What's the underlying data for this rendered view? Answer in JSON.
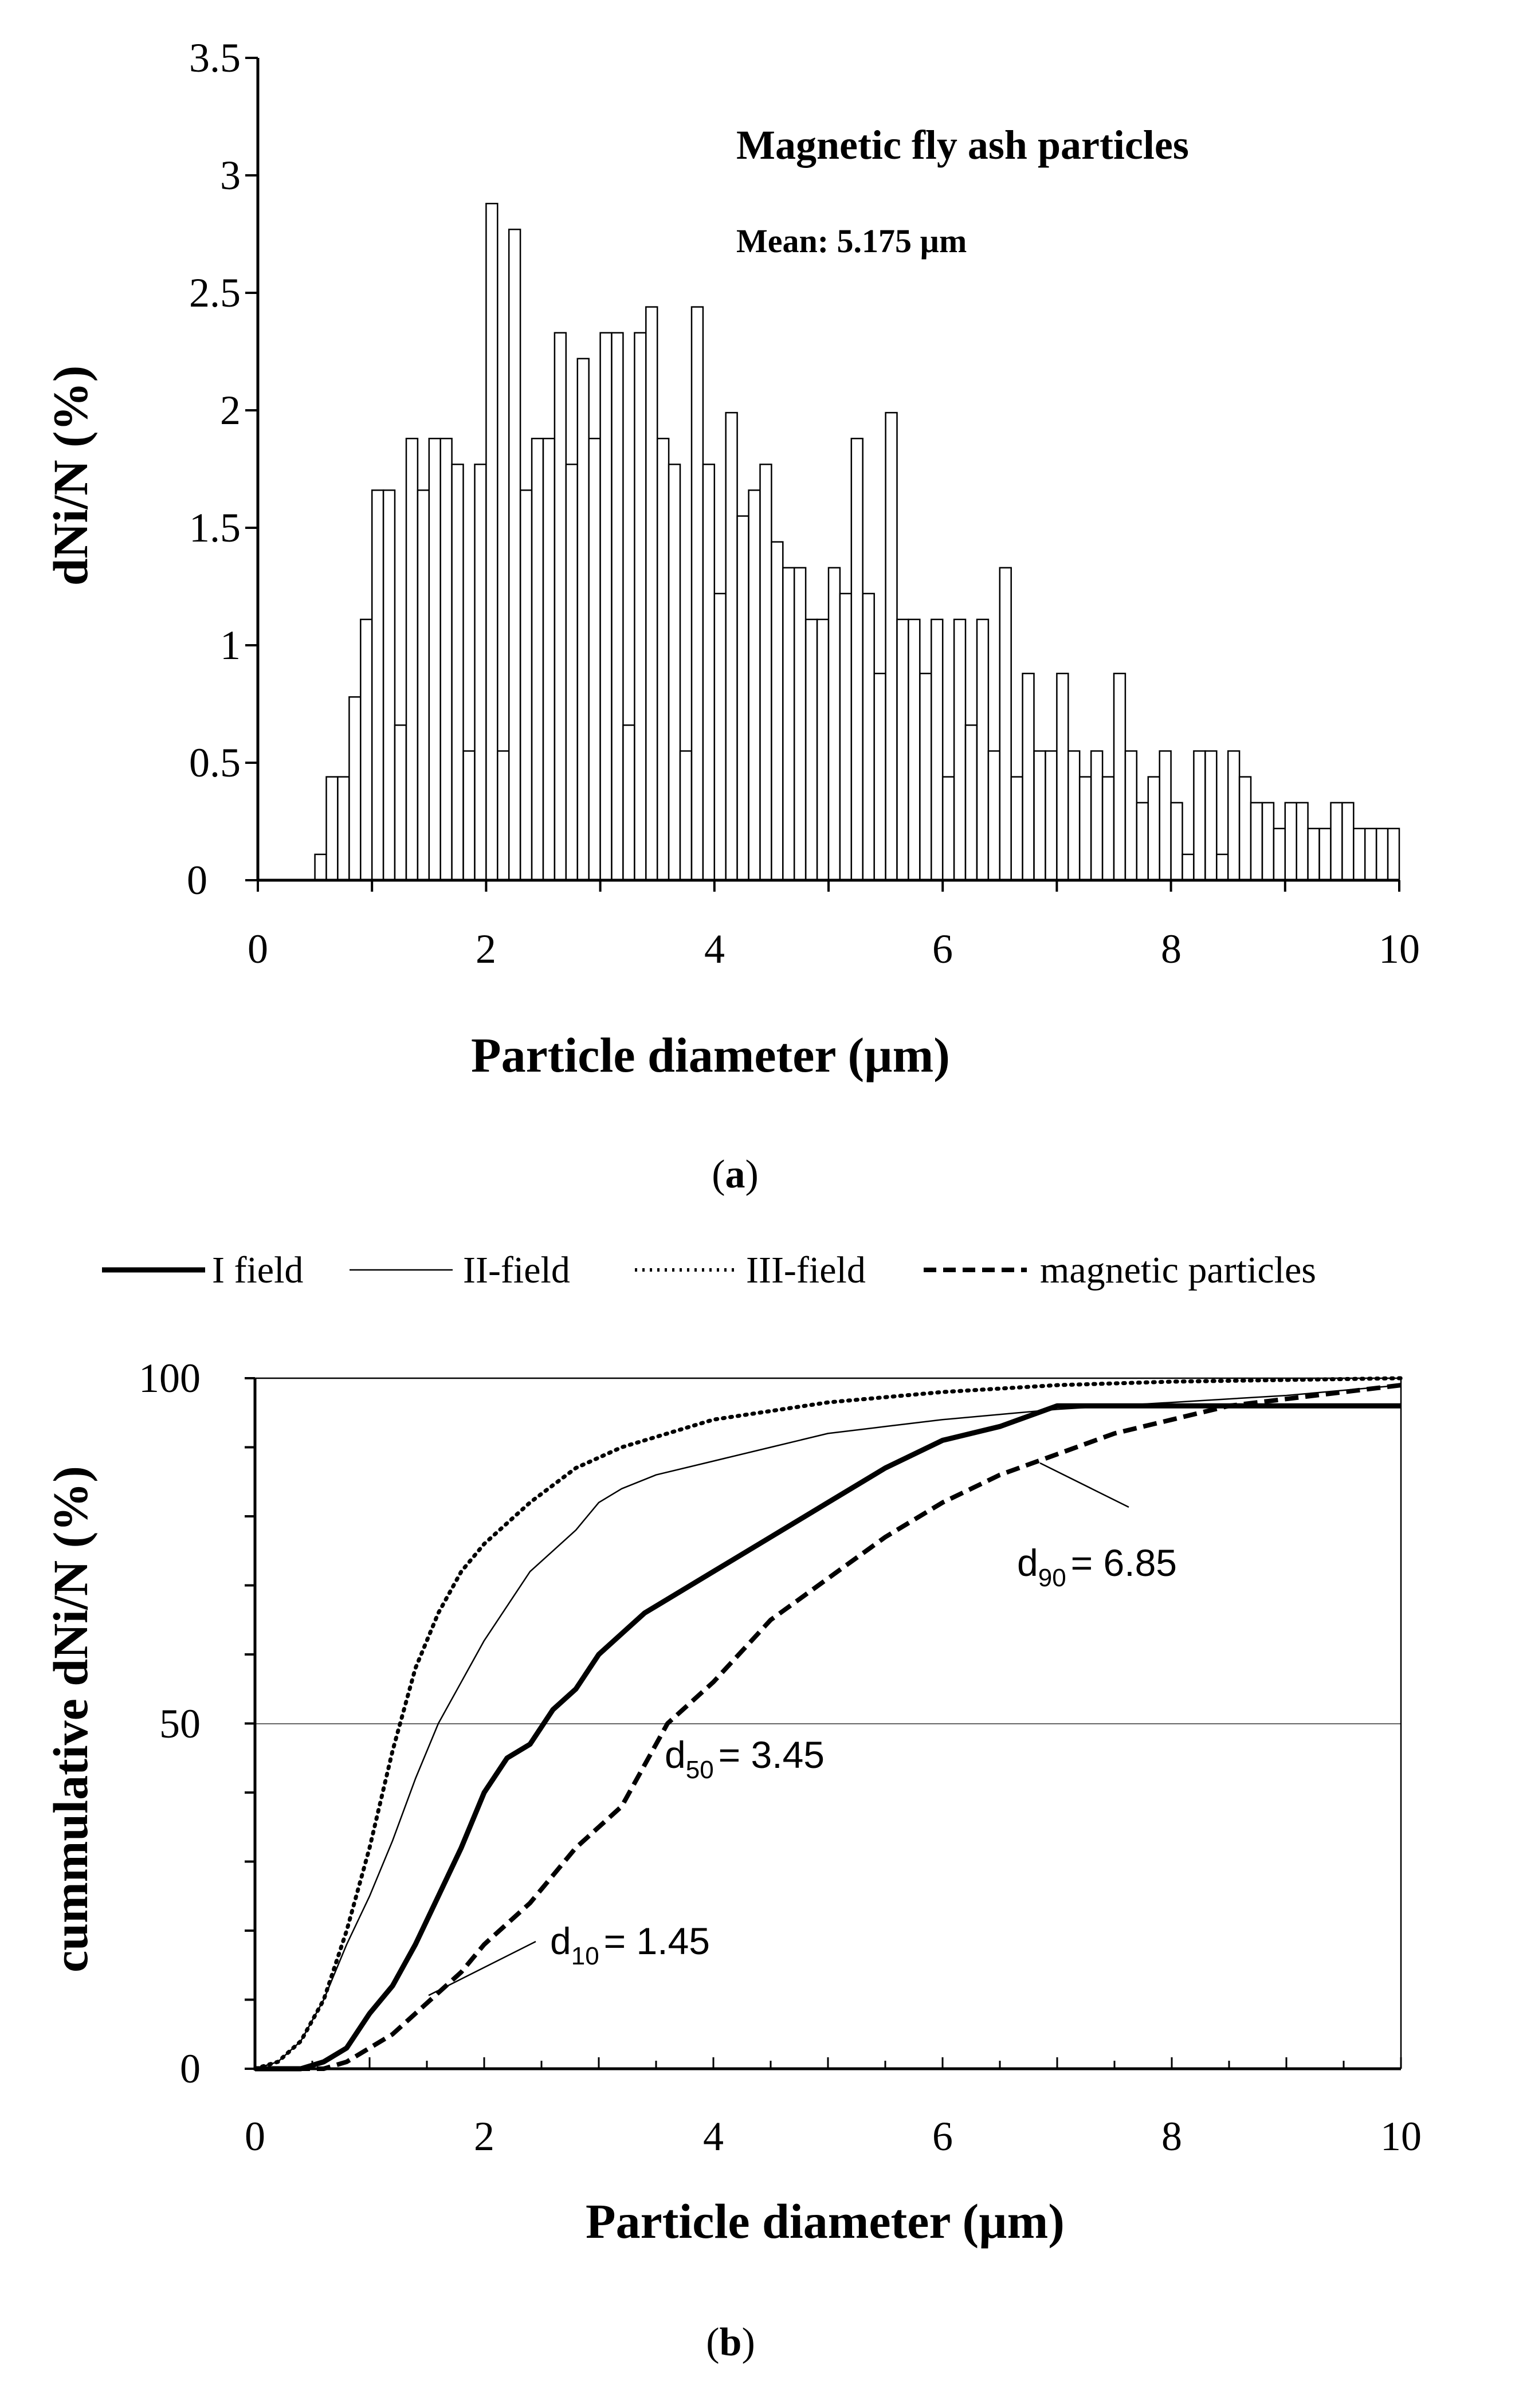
{
  "chart_data": [
    {
      "type": "bar",
      "panel_label": "a",
      "title": "Magnetic fly ash particles",
      "subtitle": "Mean: 5.175 µm",
      "xlabel": "Particle diameter (µm)",
      "ylabel": "dNi/N (%)",
      "xlim": [
        0,
        10
      ],
      "ylim": [
        0,
        3.5
      ],
      "x_ticks": [
        "0",
        "2",
        "4",
        "6",
        "8",
        "10"
      ],
      "y_ticks": [
        "0",
        "0.5",
        "1",
        "1.5",
        "2",
        "2.5",
        "3",
        "3.5"
      ],
      "bin_width": 0.1,
      "bin_start": 0.5,
      "values": [
        0.11,
        0.44,
        0.44,
        0.78,
        1.11,
        1.66,
        1.66,
        0.66,
        1.88,
        1.66,
        1.88,
        1.88,
        1.77,
        0.55,
        1.77,
        2.88,
        0.55,
        2.77,
        1.66,
        1.88,
        1.88,
        2.33,
        1.77,
        2.22,
        1.88,
        2.33,
        2.33,
        0.66,
        2.33,
        2.44,
        1.88,
        1.77,
        0.55,
        2.44,
        1.77,
        1.22,
        1.99,
        1.55,
        1.66,
        1.77,
        1.44,
        1.33,
        1.33,
        1.11,
        1.11,
        1.33,
        1.22,
        1.88,
        1.22,
        0.88,
        1.99,
        1.11,
        1.11,
        0.88,
        1.11,
        0.44,
        1.11,
        0.66,
        1.11,
        0.55,
        1.33,
        0.44,
        0.88,
        0.55,
        0.55,
        0.88,
        0.55,
        0.44,
        0.55,
        0.44,
        0.88,
        0.55,
        0.33,
        0.44,
        0.55,
        0.33,
        0.11,
        0.55,
        0.55,
        0.11,
        0.55,
        0.44,
        0.33,
        0.33,
        0.22,
        0.33,
        0.33,
        0.22,
        0.22,
        0.33,
        0.33,
        0.22,
        0.22,
        0.22,
        0.22
      ]
    },
    {
      "type": "line",
      "panel_label": "b",
      "xlabel": "Particle diameter (µm)",
      "ylabel": "cummulative dNi/N (%)",
      "xlim": [
        0,
        10
      ],
      "ylim": [
        0,
        100
      ],
      "x_ticks": [
        "0",
        "2",
        "4",
        "6",
        "8",
        "10"
      ],
      "y_ticks": [
        "0",
        "50",
        "100"
      ],
      "reference_lines": [
        50,
        100
      ],
      "series": [
        {
          "name": "I field",
          "style": "thick-solid",
          "points": [
            [
              0,
              0
            ],
            [
              0.4,
              0
            ],
            [
              0.6,
              1
            ],
            [
              0.8,
              3
            ],
            [
              1,
              8
            ],
            [
              1.2,
              12
            ],
            [
              1.4,
              18
            ],
            [
              1.6,
              25
            ],
            [
              1.8,
              32
            ],
            [
              2,
              40
            ],
            [
              2.2,
              45
            ],
            [
              2.4,
              47
            ],
            [
              2.6,
              52
            ],
            [
              2.8,
              55
            ],
            [
              3,
              60
            ],
            [
              3.2,
              63
            ],
            [
              3.4,
              66
            ],
            [
              3.6,
              68
            ],
            [
              3.8,
              70
            ],
            [
              4,
              72
            ],
            [
              4.5,
              77
            ],
            [
              5,
              82
            ],
            [
              5.5,
              87
            ],
            [
              6,
              91
            ],
            [
              6.5,
              93
            ],
            [
              7,
              96
            ],
            [
              10,
              96
            ]
          ]
        },
        {
          "name": "II-field",
          "style": "thin-solid",
          "points": [
            [
              0,
              0
            ],
            [
              0.2,
              1
            ],
            [
              0.4,
              4
            ],
            [
              0.6,
              10
            ],
            [
              0.8,
              18
            ],
            [
              1,
              25
            ],
            [
              1.2,
              33
            ],
            [
              1.4,
              42
            ],
            [
              1.6,
              50
            ],
            [
              1.8,
              56
            ],
            [
              2,
              62
            ],
            [
              2.2,
              67
            ],
            [
              2.4,
              72
            ],
            [
              2.6,
              75
            ],
            [
              2.8,
              78
            ],
            [
              3,
              82
            ],
            [
              3.2,
              84
            ],
            [
              3.5,
              86
            ],
            [
              4,
              88
            ],
            [
              4.5,
              90
            ],
            [
              5,
              92
            ],
            [
              5.5,
              93
            ],
            [
              6,
              94
            ],
            [
              7,
              95.5
            ],
            [
              8,
              96.5
            ],
            [
              9,
              97.5
            ],
            [
              10,
              99
            ]
          ]
        },
        {
          "name": "III-field",
          "style": "dotted",
          "points": [
            [
              0,
              0
            ],
            [
              0.2,
              1
            ],
            [
              0.4,
              4
            ],
            [
              0.6,
              10
            ],
            [
              0.8,
              20
            ],
            [
              1,
              32
            ],
            [
              1.2,
              46
            ],
            [
              1.4,
              58
            ],
            [
              1.6,
              66
            ],
            [
              1.8,
              72
            ],
            [
              2,
              76
            ],
            [
              2.4,
              82
            ],
            [
              2.8,
              87
            ],
            [
              3.2,
              90
            ],
            [
              3.6,
              92
            ],
            [
              4,
              94
            ],
            [
              5,
              96.5
            ],
            [
              6,
              98
            ],
            [
              7,
              99
            ],
            [
              8,
              99.5
            ],
            [
              10,
              100
            ]
          ]
        },
        {
          "name": "magnetic particles",
          "style": "dashed",
          "points": [
            [
              0,
              0
            ],
            [
              0.6,
              0
            ],
            [
              0.8,
              1
            ],
            [
              1,
              3
            ],
            [
              1.2,
              5
            ],
            [
              1.4,
              8
            ],
            [
              1.6,
              11
            ],
            [
              1.8,
              14
            ],
            [
              2,
              18
            ],
            [
              2.4,
              24
            ],
            [
              2.8,
              32
            ],
            [
              3.2,
              38
            ],
            [
              3.6,
              50
            ],
            [
              4,
              56
            ],
            [
              4.5,
              65
            ],
            [
              5,
              71
            ],
            [
              5.5,
              77
            ],
            [
              6,
              82
            ],
            [
              6.5,
              86
            ],
            [
              7,
              89
            ],
            [
              7.5,
              92
            ],
            [
              8,
              94
            ],
            [
              8.5,
              96
            ],
            [
              9,
              97
            ],
            [
              9.5,
              98
            ],
            [
              10,
              99
            ]
          ]
        }
      ],
      "annotations": [
        {
          "label": "d",
          "subscript": "90",
          "value": "= 6.85",
          "target_x": 6.85,
          "target_y": 90
        },
        {
          "label": "d",
          "subscript": "50",
          "value": "= 3.45",
          "target_x": 3.45,
          "target_y": 50
        },
        {
          "label": "d",
          "subscript": "10",
          "value": "= 1.45",
          "target_x": 1.45,
          "target_y": 10
        }
      ]
    }
  ]
}
